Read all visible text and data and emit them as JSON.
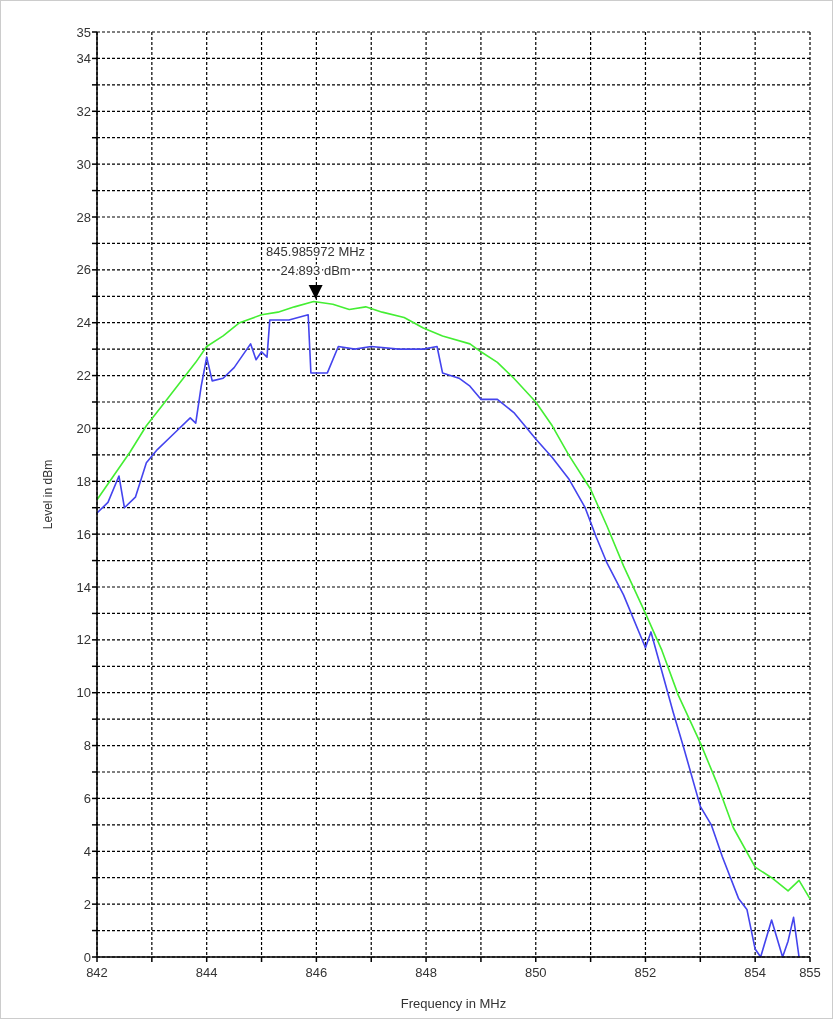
{
  "chart_data": {
    "type": "line",
    "xlabel": "Frequency in MHz",
    "ylabel": "Level in dBm",
    "xlim": [
      842,
      855
    ],
    "ylim": [
      0,
      35
    ],
    "xticks": [
      842,
      {
        "value": 843,
        "label": null
      },
      844,
      {
        "value": 845,
        "label": null
      },
      846,
      {
        "value": 847,
        "label": null
      },
      848,
      {
        "value": 849,
        "label": null
      },
      850,
      {
        "value": 851,
        "label": null
      },
      852,
      {
        "value": 853,
        "label": null
      },
      854,
      855
    ],
    "yticks": [
      0,
      {
        "value": 1,
        "label": null
      },
      2,
      {
        "value": 3,
        "label": null
      },
      4,
      {
        "value": 5,
        "label": null
      },
      6,
      {
        "value": 7,
        "label": null
      },
      8,
      {
        "value": 9,
        "label": null
      },
      10,
      {
        "value": 11,
        "label": null
      },
      12,
      {
        "value": 13,
        "label": null
      },
      14,
      {
        "value": 15,
        "label": null
      },
      16,
      {
        "value": 17,
        "label": null
      },
      18,
      {
        "value": 19,
        "label": null
      },
      20,
      {
        "value": 21,
        "label": null
      },
      22,
      {
        "value": 23,
        "label": null
      },
      24,
      {
        "value": 25,
        "label": null
      },
      26,
      {
        "value": 27,
        "label": null
      },
      28,
      {
        "value": 29,
        "label": null
      },
      30,
      {
        "value": 31,
        "label": null
      },
      32,
      {
        "value": 33,
        "label": null
      },
      34,
      35
    ],
    "grid": true,
    "marker": "none",
    "line_style": "solid",
    "annotations": [
      {
        "text": "845.985972 MHz\n24.893 dBm",
        "x": 845.985972,
        "y": 24.893
      }
    ],
    "series": [
      {
        "color": "#44ee33",
        "x": [
          842,
          842.3,
          842.6,
          842.9,
          843.2,
          843.5,
          843.8,
          844,
          844.3,
          844.6,
          845,
          845.3,
          845.6,
          845.95,
          846.3,
          846.6,
          846.9,
          847.2,
          847.6,
          847.95,
          848.3,
          848.8,
          849,
          849.3,
          849.6,
          850,
          850.3,
          850.6,
          851,
          851.3,
          851.6,
          852,
          852.3,
          852.6,
          853,
          853.3,
          853.6,
          854,
          854.3,
          854.6,
          854.8,
          855
        ],
        "values": [
          17.3,
          18.2,
          19.1,
          20.1,
          20.9,
          21.7,
          22.5,
          23.1,
          23.5,
          24.0,
          24.3,
          24.4,
          24.6,
          24.8,
          24.7,
          24.5,
          24.6,
          24.4,
          24.2,
          23.8,
          23.5,
          23.2,
          22.9,
          22.5,
          21.9,
          21.0,
          20.1,
          19.0,
          17.7,
          16.3,
          14.8,
          13.0,
          11.6,
          9.9,
          8.1,
          6.6,
          4.9,
          3.4,
          3.0,
          2.5,
          2.9,
          2.2
        ]
      },
      {
        "color": "#4444ee",
        "x": [
          842,
          842.2,
          842.4,
          842.5,
          842.7,
          842.9,
          843.1,
          843.4,
          843.7,
          843.8,
          843.9,
          844,
          844.1,
          844.3,
          844.5,
          844.8,
          844.9,
          845,
          845.1,
          845.15,
          845.5,
          845.85,
          845.9,
          846.2,
          846.4,
          846.7,
          847,
          847.5,
          847.95,
          848.2,
          848.3,
          848.6,
          848.8,
          849,
          849.3,
          849.6,
          850,
          850.3,
          850.6,
          850.9,
          851.1,
          851.3,
          851.6,
          852,
          852.1,
          852.3,
          852.5,
          852.7,
          853,
          853.2,
          853.4,
          853.7,
          853.85,
          854,
          854.1,
          854.3,
          854.5,
          854.6,
          854.7,
          854.8
        ],
        "values": [
          16.8,
          17.2,
          18.2,
          17.0,
          17.4,
          18.7,
          19.2,
          19.8,
          20.4,
          20.2,
          21.6,
          22.7,
          21.8,
          21.9,
          22.3,
          23.2,
          22.6,
          22.9,
          22.7,
          24.1,
          24.1,
          24.3,
          22.1,
          22.1,
          23.1,
          23.0,
          23.1,
          23.0,
          23.0,
          23.1,
          22.1,
          21.9,
          21.6,
          21.1,
          21.1,
          20.6,
          19.6,
          18.9,
          18.1,
          17.0,
          15.9,
          14.9,
          13.7,
          11.7,
          12.3,
          10.8,
          9.3,
          7.9,
          5.7,
          5.0,
          3.8,
          2.2,
          1.8,
          0.3,
          0,
          1.4,
          0,
          0.6,
          1.5,
          0
        ]
      }
    ]
  }
}
